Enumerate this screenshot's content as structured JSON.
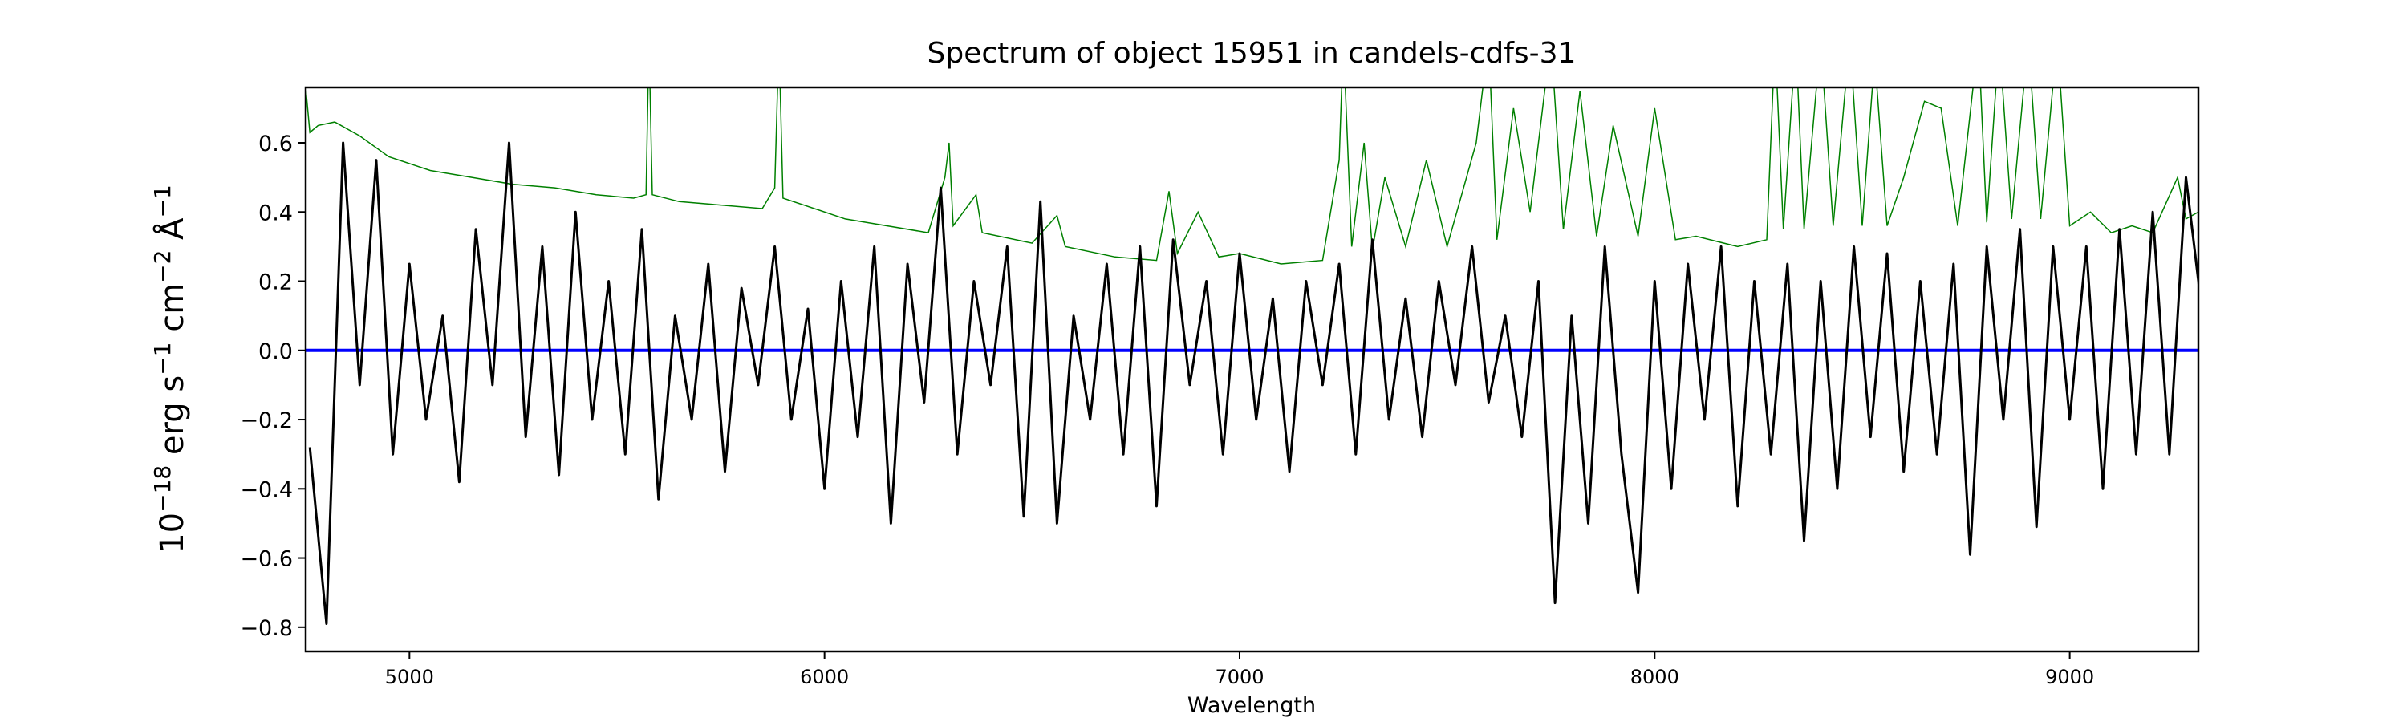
{
  "chart_data": {
    "type": "line",
    "title": "Spectrum of object 15951 in candels-cdfs-31",
    "xlabel": "Wavelength",
    "ylabel_parts": {
      "base": "10",
      "exp1": "−18",
      "unit1": " erg s",
      "exp2": "−1",
      "unit2": " cm",
      "exp3": "−2",
      "unit3": " Å",
      "exp4": "−1"
    },
    "ylabel": "10^-18 erg s^-1 cm^-2 Å^-1",
    "xlim": [
      4750,
      9310
    ],
    "ylim": [
      -0.87,
      0.76
    ],
    "xticks": [
      5000,
      6000,
      7000,
      8000,
      9000
    ],
    "xtick_labels": [
      "5000",
      "6000",
      "7000",
      "8000",
      "9000"
    ],
    "yticks": [
      0.6,
      0.4,
      0.2,
      0.0,
      -0.2,
      -0.4,
      -0.6,
      -0.8
    ],
    "ytick_labels": [
      "0.6",
      "0.4",
      "0.2",
      "0.0",
      "−0.2",
      "−0.4",
      "−0.6",
      "−0.8"
    ],
    "grid": false,
    "colors": {
      "flux": "#000000",
      "error": "#008000",
      "zero": "#0000ff"
    },
    "series": [
      {
        "name": "flux",
        "x_start": 4760,
        "x_step": 40,
        "values": [
          -0.28,
          -0.79,
          0.6,
          -0.1,
          0.55,
          -0.3,
          0.25,
          -0.2,
          0.1,
          -0.38,
          0.35,
          -0.1,
          0.6,
          -0.25,
          0.3,
          -0.36,
          0.4,
          -0.2,
          0.2,
          -0.3,
          0.35,
          -0.43,
          0.1,
          -0.2,
          0.25,
          -0.35,
          0.18,
          -0.1,
          0.3,
          -0.2,
          0.12,
          -0.4,
          0.2,
          -0.25,
          0.3,
          -0.5,
          0.25,
          -0.15,
          0.47,
          -0.3,
          0.2,
          -0.1,
          0.3,
          -0.48,
          0.43,
          -0.5,
          0.1,
          -0.2,
          0.25,
          -0.3,
          0.3,
          -0.45,
          0.32,
          -0.1,
          0.2,
          -0.3,
          0.28,
          -0.2,
          0.15,
          -0.35,
          0.2,
          -0.1,
          0.25,
          -0.3,
          0.32,
          -0.2,
          0.15,
          -0.25,
          0.2,
          -0.1,
          0.3,
          -0.15,
          0.1,
          -0.25,
          0.2,
          -0.73,
          0.1,
          -0.5,
          0.3,
          -0.3,
          -0.7,
          0.2,
          -0.4,
          0.25,
          -0.2,
          0.3,
          -0.45,
          0.2,
          -0.3,
          0.25,
          -0.55,
          0.2,
          -0.4,
          0.3,
          -0.25,
          0.28,
          -0.35,
          0.2,
          -0.3,
          0.25,
          -0.59,
          0.3,
          -0.2,
          0.35,
          -0.51,
          0.3,
          -0.2,
          0.3,
          -0.4,
          0.35,
          -0.3,
          0.4,
          -0.3,
          0.5,
          0.1
        ]
      },
      {
        "name": "error",
        "points": [
          [
            4750,
            0.76
          ],
          [
            4760,
            0.63
          ],
          [
            4780,
            0.65
          ],
          [
            4820,
            0.66
          ],
          [
            4880,
            0.62
          ],
          [
            4950,
            0.56
          ],
          [
            5050,
            0.52
          ],
          [
            5150,
            0.5
          ],
          [
            5250,
            0.48
          ],
          [
            5350,
            0.47
          ],
          [
            5450,
            0.45
          ],
          [
            5540,
            0.44
          ],
          [
            5570,
            0.45
          ],
          [
            5577,
            0.9
          ],
          [
            5585,
            0.45
          ],
          [
            5650,
            0.43
          ],
          [
            5750,
            0.42
          ],
          [
            5850,
            0.41
          ],
          [
            5880,
            0.47
          ],
          [
            5890,
            0.9
          ],
          [
            5900,
            0.44
          ],
          [
            5950,
            0.42
          ],
          [
            6050,
            0.38
          ],
          [
            6150,
            0.36
          ],
          [
            6250,
            0.34
          ],
          [
            6290,
            0.5
          ],
          [
            6300,
            0.6
          ],
          [
            6310,
            0.36
          ],
          [
            6365,
            0.45
          ],
          [
            6380,
            0.34
          ],
          [
            6500,
            0.31
          ],
          [
            6560,
            0.39
          ],
          [
            6580,
            0.3
          ],
          [
            6700,
            0.27
          ],
          [
            6800,
            0.26
          ],
          [
            6830,
            0.46
          ],
          [
            6850,
            0.28
          ],
          [
            6900,
            0.4
          ],
          [
            6950,
            0.27
          ],
          [
            7000,
            0.28
          ],
          [
            7100,
            0.25
          ],
          [
            7200,
            0.26
          ],
          [
            7240,
            0.55
          ],
          [
            7250,
            0.9
          ],
          [
            7270,
            0.3
          ],
          [
            7300,
            0.6
          ],
          [
            7320,
            0.29
          ],
          [
            7350,
            0.5
          ],
          [
            7400,
            0.3
          ],
          [
            7450,
            0.55
          ],
          [
            7500,
            0.3
          ],
          [
            7570,
            0.6
          ],
          [
            7600,
            0.9
          ],
          [
            7620,
            0.32
          ],
          [
            7660,
            0.7
          ],
          [
            7700,
            0.4
          ],
          [
            7750,
            0.9
          ],
          [
            7780,
            0.35
          ],
          [
            7820,
            0.75
          ],
          [
            7860,
            0.33
          ],
          [
            7900,
            0.65
          ],
          [
            7960,
            0.33
          ],
          [
            8000,
            0.7
          ],
          [
            8050,
            0.32
          ],
          [
            8100,
            0.33
          ],
          [
            8200,
            0.3
          ],
          [
            8270,
            0.32
          ],
          [
            8290,
            0.9
          ],
          [
            8310,
            0.35
          ],
          [
            8340,
            0.9
          ],
          [
            8360,
            0.35
          ],
          [
            8400,
            0.9
          ],
          [
            8430,
            0.36
          ],
          [
            8470,
            0.9
          ],
          [
            8500,
            0.36
          ],
          [
            8530,
            0.85
          ],
          [
            8560,
            0.36
          ],
          [
            8600,
            0.5
          ],
          [
            8650,
            0.72
          ],
          [
            8690,
            0.7
          ],
          [
            8730,
            0.36
          ],
          [
            8780,
            0.9
          ],
          [
            8800,
            0.37
          ],
          [
            8830,
            0.9
          ],
          [
            8860,
            0.38
          ],
          [
            8900,
            0.9
          ],
          [
            8930,
            0.38
          ],
          [
            8970,
            0.9
          ],
          [
            9000,
            0.36
          ],
          [
            9050,
            0.4
          ],
          [
            9100,
            0.34
          ],
          [
            9150,
            0.36
          ],
          [
            9200,
            0.34
          ],
          [
            9260,
            0.5
          ],
          [
            9280,
            0.38
          ],
          [
            9310,
            0.4
          ]
        ]
      },
      {
        "name": "zero",
        "value": 0.0
      }
    ]
  }
}
